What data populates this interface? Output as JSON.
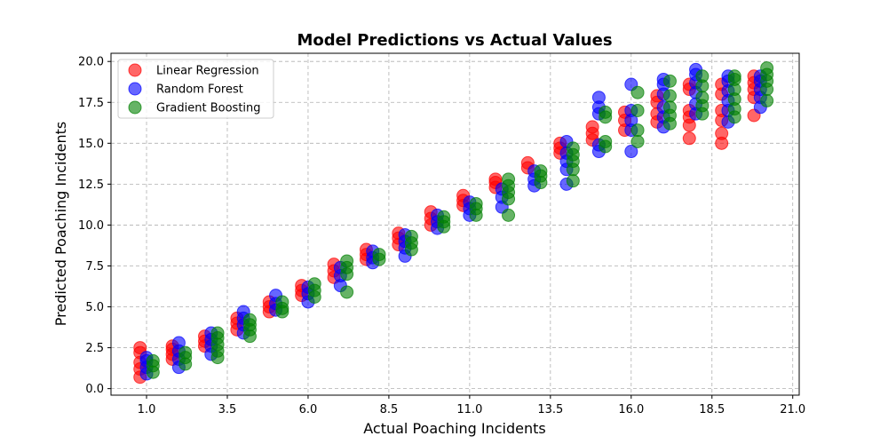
{
  "chart_data": {
    "type": "scatter",
    "title": "Model Predictions vs Actual Values",
    "xlabel": "Actual Poaching Incidents",
    "ylabel": "Predicted Poaching Incidents",
    "xlim": [
      -0.1,
      21.2
    ],
    "ylim": [
      -0.4,
      20.5
    ],
    "xticks": [
      "1.0",
      "3.5",
      "6.0",
      "8.5",
      "11.0",
      "13.5",
      "16.0",
      "18.5",
      "21.0"
    ],
    "yticks": [
      "0.0",
      "2.5",
      "5.0",
      "7.5",
      "10.0",
      "12.5",
      "15.0",
      "17.5",
      "20.0"
    ],
    "grid": true,
    "legend_position": "top-left",
    "series": [
      {
        "name": "Linear Regression",
        "color": "#ff0000",
        "points": [
          [
            0.8,
            0.7
          ],
          [
            0.8,
            1.2
          ],
          [
            0.8,
            1.6
          ],
          [
            0.8,
            2.2
          ],
          [
            0.8,
            2.5
          ],
          [
            1.8,
            1.8
          ],
          [
            1.8,
            2.1
          ],
          [
            1.8,
            2.4
          ],
          [
            1.8,
            2.6
          ],
          [
            2.8,
            2.6
          ],
          [
            2.8,
            2.9
          ],
          [
            2.8,
            3.2
          ],
          [
            3.8,
            3.6
          ],
          [
            3.8,
            4.0
          ],
          [
            3.8,
            4.3
          ],
          [
            4.8,
            4.7
          ],
          [
            4.8,
            5.0
          ],
          [
            4.8,
            5.3
          ],
          [
            5.8,
            5.7
          ],
          [
            5.8,
            6.0
          ],
          [
            5.8,
            6.3
          ],
          [
            6.8,
            6.8
          ],
          [
            6.8,
            7.2
          ],
          [
            6.8,
            7.6
          ],
          [
            7.8,
            7.9
          ],
          [
            7.8,
            8.2
          ],
          [
            7.8,
            8.5
          ],
          [
            8.8,
            8.8
          ],
          [
            8.8,
            9.2
          ],
          [
            8.8,
            9.5
          ],
          [
            9.8,
            10.0
          ],
          [
            9.8,
            10.4
          ],
          [
            9.8,
            10.8
          ],
          [
            10.8,
            11.2
          ],
          [
            10.8,
            11.5
          ],
          [
            10.8,
            11.8
          ],
          [
            11.8,
            12.3
          ],
          [
            11.8,
            12.6
          ],
          [
            11.8,
            12.8
          ],
          [
            12.8,
            13.5
          ],
          [
            12.8,
            13.8
          ],
          [
            13.8,
            14.4
          ],
          [
            13.8,
            14.7
          ],
          [
            13.8,
            15.0
          ],
          [
            14.8,
            15.2
          ],
          [
            14.8,
            15.6
          ],
          [
            14.8,
            16.0
          ],
          [
            15.8,
            15.8
          ],
          [
            15.8,
            16.4
          ],
          [
            15.8,
            16.9
          ],
          [
            16.8,
            16.3
          ],
          [
            16.8,
            16.8
          ],
          [
            16.8,
            17.5
          ],
          [
            16.8,
            17.9
          ],
          [
            17.8,
            15.3
          ],
          [
            17.8,
            16.1
          ],
          [
            17.8,
            16.6
          ],
          [
            17.8,
            17.0
          ],
          [
            17.8,
            18.3
          ],
          [
            17.8,
            18.6
          ],
          [
            18.8,
            15.0
          ],
          [
            18.8,
            15.6
          ],
          [
            18.8,
            16.4
          ],
          [
            18.8,
            17.0
          ],
          [
            18.8,
            18.0
          ],
          [
            18.8,
            18.6
          ],
          [
            19.8,
            16.7
          ],
          [
            19.8,
            17.8
          ],
          [
            19.8,
            18.3
          ],
          [
            19.8,
            18.7
          ],
          [
            19.8,
            19.1
          ]
        ]
      },
      {
        "name": "Random Forest",
        "color": "#0000ff",
        "points": [
          [
            1.0,
            0.9
          ],
          [
            1.0,
            1.3
          ],
          [
            1.0,
            1.7
          ],
          [
            1.0,
            1.9
          ],
          [
            2.0,
            1.3
          ],
          [
            2.0,
            1.8
          ],
          [
            2.0,
            2.3
          ],
          [
            2.0,
            2.8
          ],
          [
            3.0,
            2.1
          ],
          [
            3.0,
            2.6
          ],
          [
            3.0,
            3.0
          ],
          [
            3.0,
            3.4
          ],
          [
            4.0,
            3.4
          ],
          [
            4.0,
            3.9
          ],
          [
            4.0,
            4.3
          ],
          [
            4.0,
            4.7
          ],
          [
            5.0,
            4.8
          ],
          [
            5.0,
            5.2
          ],
          [
            5.0,
            5.7
          ],
          [
            6.0,
            5.3
          ],
          [
            6.0,
            5.8
          ],
          [
            6.0,
            6.2
          ],
          [
            7.0,
            6.3
          ],
          [
            7.0,
            6.9
          ],
          [
            7.0,
            7.4
          ],
          [
            8.0,
            7.7
          ],
          [
            8.0,
            8.0
          ],
          [
            8.0,
            8.4
          ],
          [
            9.0,
            8.1
          ],
          [
            9.0,
            8.6
          ],
          [
            9.0,
            9.0
          ],
          [
            9.0,
            9.4
          ],
          [
            10.0,
            9.8
          ],
          [
            10.0,
            10.2
          ],
          [
            10.0,
            10.6
          ],
          [
            11.0,
            10.6
          ],
          [
            11.0,
            11.0
          ],
          [
            11.0,
            11.4
          ],
          [
            12.0,
            11.1
          ],
          [
            12.0,
            11.7
          ],
          [
            12.0,
            12.2
          ],
          [
            13.0,
            12.4
          ],
          [
            13.0,
            12.8
          ],
          [
            13.0,
            13.3
          ],
          [
            14.0,
            12.5
          ],
          [
            14.0,
            13.4
          ],
          [
            14.0,
            13.9
          ],
          [
            14.0,
            14.4
          ],
          [
            14.0,
            15.1
          ],
          [
            15.0,
            14.5
          ],
          [
            15.0,
            14.9
          ],
          [
            15.0,
            16.8
          ],
          [
            15.0,
            17.2
          ],
          [
            15.0,
            17.8
          ],
          [
            16.0,
            14.5
          ],
          [
            16.0,
            15.8
          ],
          [
            16.0,
            16.4
          ],
          [
            16.0,
            17.0
          ],
          [
            16.0,
            18.6
          ],
          [
            17.0,
            16.0
          ],
          [
            17.0,
            16.6
          ],
          [
            17.0,
            17.2
          ],
          [
            17.0,
            18.0
          ],
          [
            17.0,
            18.6
          ],
          [
            17.0,
            18.9
          ],
          [
            18.0,
            16.8
          ],
          [
            18.0,
            17.4
          ],
          [
            18.0,
            18.1
          ],
          [
            18.0,
            18.7
          ],
          [
            18.0,
            19.2
          ],
          [
            18.0,
            19.5
          ],
          [
            19.0,
            16.3
          ],
          [
            19.0,
            17.0
          ],
          [
            19.0,
            17.6
          ],
          [
            19.0,
            18.2
          ],
          [
            19.0,
            18.8
          ],
          [
            19.0,
            19.1
          ],
          [
            20.0,
            17.2
          ],
          [
            20.0,
            17.8
          ],
          [
            20.0,
            18.3
          ],
          [
            20.0,
            18.8
          ],
          [
            20.0,
            19.1
          ]
        ]
      },
      {
        "name": "Gradient Boosting",
        "color": "#008000",
        "points": [
          [
            1.2,
            1.0
          ],
          [
            1.2,
            1.4
          ],
          [
            1.2,
            1.7
          ],
          [
            2.2,
            1.5
          ],
          [
            2.2,
            1.9
          ],
          [
            2.2,
            2.2
          ],
          [
            3.2,
            1.9
          ],
          [
            3.2,
            2.3
          ],
          [
            3.2,
            2.7
          ],
          [
            3.2,
            3.1
          ],
          [
            3.2,
            3.4
          ],
          [
            4.2,
            3.2
          ],
          [
            4.2,
            3.6
          ],
          [
            4.2,
            3.9
          ],
          [
            4.2,
            4.2
          ],
          [
            5.2,
            4.7
          ],
          [
            5.2,
            4.9
          ],
          [
            5.2,
            5.3
          ],
          [
            6.2,
            5.6
          ],
          [
            6.2,
            6.0
          ],
          [
            6.2,
            6.4
          ],
          [
            7.2,
            5.9
          ],
          [
            7.2,
            7.0
          ],
          [
            7.2,
            7.4
          ],
          [
            7.2,
            7.8
          ],
          [
            8.2,
            7.9
          ],
          [
            8.2,
            8.2
          ],
          [
            9.2,
            8.5
          ],
          [
            9.2,
            8.9
          ],
          [
            9.2,
            9.3
          ],
          [
            10.2,
            9.9
          ],
          [
            10.2,
            10.2
          ],
          [
            10.2,
            10.5
          ],
          [
            11.2,
            10.6
          ],
          [
            11.2,
            11.0
          ],
          [
            11.2,
            11.3
          ],
          [
            12.2,
            10.6
          ],
          [
            12.2,
            11.6
          ],
          [
            12.2,
            12.0
          ],
          [
            12.2,
            12.4
          ],
          [
            12.2,
            12.8
          ],
          [
            13.2,
            12.6
          ],
          [
            13.2,
            13.0
          ],
          [
            13.2,
            13.3
          ],
          [
            14.2,
            12.7
          ],
          [
            14.2,
            13.4
          ],
          [
            14.2,
            13.9
          ],
          [
            14.2,
            14.3
          ],
          [
            14.2,
            14.7
          ],
          [
            15.2,
            14.8
          ],
          [
            15.2,
            15.1
          ],
          [
            15.2,
            16.6
          ],
          [
            15.2,
            16.9
          ],
          [
            16.2,
            15.1
          ],
          [
            16.2,
            15.8
          ],
          [
            16.2,
            17.0
          ],
          [
            16.2,
            18.1
          ],
          [
            17.2,
            16.2
          ],
          [
            17.2,
            16.7
          ],
          [
            17.2,
            17.2
          ],
          [
            17.2,
            17.9
          ],
          [
            17.2,
            18.8
          ],
          [
            18.2,
            16.8
          ],
          [
            18.2,
            17.3
          ],
          [
            18.2,
            17.8
          ],
          [
            18.2,
            18.5
          ],
          [
            18.2,
            19.1
          ],
          [
            19.2,
            16.6
          ],
          [
            19.2,
            17.1
          ],
          [
            19.2,
            17.7
          ],
          [
            19.2,
            18.3
          ],
          [
            19.2,
            18.9
          ],
          [
            19.2,
            19.1
          ],
          [
            20.2,
            17.6
          ],
          [
            20.2,
            18.3
          ],
          [
            20.2,
            18.8
          ],
          [
            20.2,
            19.2
          ],
          [
            20.2,
            19.6
          ]
        ]
      }
    ]
  }
}
